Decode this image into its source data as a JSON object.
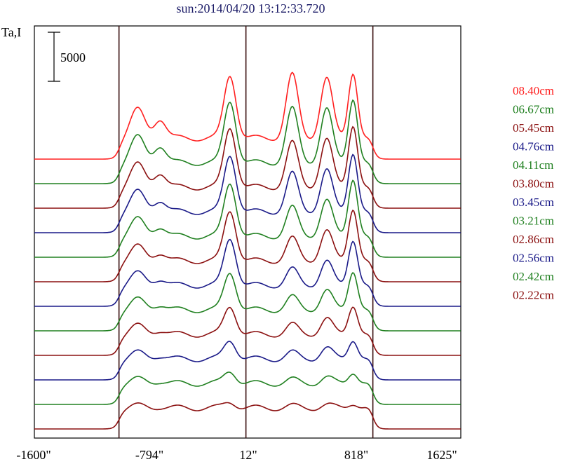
{
  "chart_data": {
    "type": "line",
    "title": "sun:2014/04/20 13:12:33.720",
    "ylabel": "Ta,I",
    "scale_bar_label": "5000",
    "x_ticks": [
      "-1600\"",
      "-794\"",
      "12\"",
      "818\"",
      "1625\""
    ],
    "x_tick_values": [
      -1600,
      -794,
      12,
      818,
      1625
    ],
    "xlim": [
      -1600,
      1625
    ],
    "vertical_markers": [
      -960,
      0,
      960
    ],
    "offset_step": 35,
    "series": [
      {
        "name": "08.40cm",
        "color": "#ff2020",
        "offset": 11,
        "peaks": [
          1.0,
          1.0,
          1.0,
          1.0,
          1.0,
          1.0
        ]
      },
      {
        "name": "06.67cm",
        "color": "#208020",
        "offset": 10,
        "peaks": [
          0.9,
          0.88,
          0.98,
          0.85,
          0.9,
          0.98
        ]
      },
      {
        "name": "05.45cm",
        "color": "#8b1010",
        "offset": 9,
        "peaks": [
          0.8,
          0.75,
          0.95,
          0.7,
          0.8,
          0.95
        ]
      },
      {
        "name": "04.76cm",
        "color": "#1a1a88",
        "offset": 8,
        "peaks": [
          0.7,
          0.6,
          0.9,
          0.6,
          0.7,
          0.9
        ]
      },
      {
        "name": "04.11cm",
        "color": "#208020",
        "offset": 7,
        "peaks": [
          0.6,
          0.5,
          0.85,
          0.45,
          0.6,
          0.88
        ]
      },
      {
        "name": "03.80cm",
        "color": "#8b1010",
        "offset": 6,
        "peaks": [
          0.5,
          0.42,
          0.8,
          0.35,
          0.5,
          0.8
        ]
      },
      {
        "name": "03.45cm",
        "color": "#1a1a88",
        "offset": 5,
        "peaks": [
          0.42,
          0.34,
          0.75,
          0.25,
          0.4,
          0.7
        ]
      },
      {
        "name": "03.21cm",
        "color": "#208020",
        "offset": 4,
        "peaks": [
          0.36,
          0.28,
          0.6,
          0.2,
          0.32,
          0.6
        ]
      },
      {
        "name": "02.86cm",
        "color": "#8b1010",
        "offset": 3,
        "peaks": [
          0.3,
          0.22,
          0.45,
          0.15,
          0.26,
          0.45
        ]
      },
      {
        "name": "02.56cm",
        "color": "#1a1a88",
        "offset": 2,
        "peaks": [
          0.22,
          0.17,
          0.3,
          0.1,
          0.18,
          0.3
        ]
      },
      {
        "name": "02.42cm",
        "color": "#208020",
        "offset": 1,
        "peaks": [
          0.15,
          0.12,
          0.2,
          0.06,
          0.1,
          0.18
        ]
      },
      {
        "name": "02.22cm",
        "color": "#8b1010",
        "offset": 0,
        "peaks": [
          0.08,
          0.06,
          0.1,
          0.03,
          0.05,
          0.08
        ]
      }
    ],
    "grid": false,
    "legend_position": "right"
  }
}
